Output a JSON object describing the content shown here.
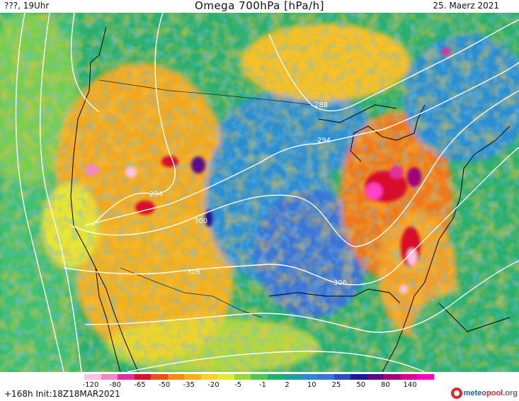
{
  "header": {
    "left": "???, 19Uhr",
    "title": "Omega 700hPa [hPa/h]",
    "right": "25. Maerz 2021"
  },
  "map": {
    "contour_labels": [
      "288",
      "294",
      "294",
      "300",
      "306",
      "306"
    ]
  },
  "legend": {
    "ticks": [
      "-120",
      "-80",
      "-65",
      "-50",
      "-35",
      "-20",
      "-5",
      "-1",
      "2",
      "10",
      "25",
      "50",
      "80",
      "140"
    ],
    "colors": [
      "#ffffff",
      "#f7c2e6",
      "#f088c8",
      "#e0309a",
      "#d8102c",
      "#f05010",
      "#f48a10",
      "#f6b018",
      "#f6d030",
      "#e4e830",
      "#9ad838",
      "#50c848",
      "#20b068",
      "#20a098",
      "#2a8ccc",
      "#3a74d6",
      "#2c4cc0",
      "#1a1a9a",
      "#5a0a8a",
      "#a0067a",
      "#d80090",
      "#ff00c0"
    ]
  },
  "footer": {
    "forecast": "+168h  Init:18Z18MAR2021",
    "logo_main": "meteo",
    "logo_accent": "pool",
    "logo_tld": ".org"
  },
  "colors": {
    "ocean": "#2ab06c",
    "land_warm": "#f2a81c",
    "land_cool": "#2c8fd2",
    "contour": "#ffffff",
    "coast": "#000000"
  }
}
